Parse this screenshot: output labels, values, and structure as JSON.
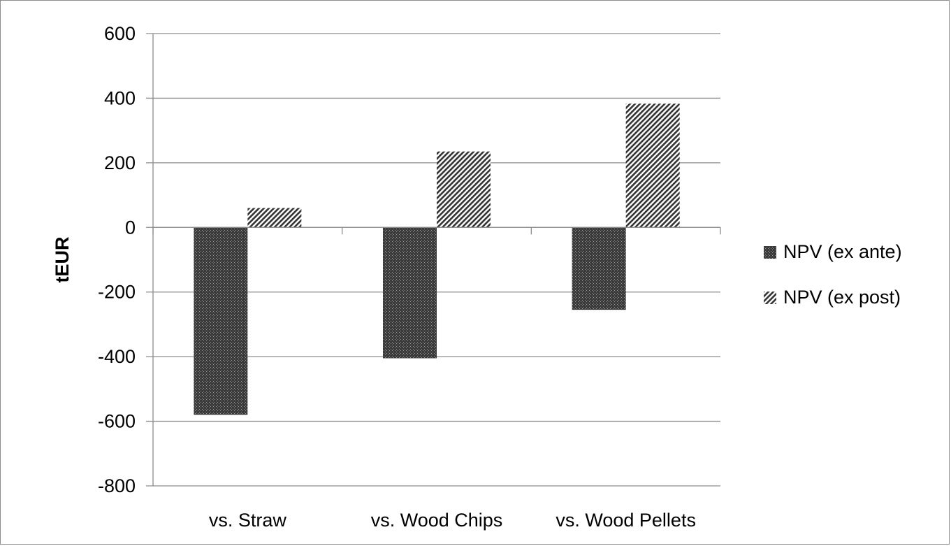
{
  "chart_data": {
    "type": "bar",
    "title": "",
    "xlabel": "",
    "ylabel": "tEUR",
    "ylim": [
      -800,
      600
    ],
    "yticks": [
      600,
      400,
      200,
      0,
      -200,
      -400,
      -600,
      -800
    ],
    "ytick_labels": [
      "600",
      "400",
      "200",
      "0",
      "-200",
      "-400",
      "-600",
      "-800"
    ],
    "grid": "horizontal",
    "legend_position": "right",
    "categories": [
      "vs. Straw",
      "vs. Wood Chips",
      "vs. Wood Pellets"
    ],
    "series": [
      {
        "name": "NPV (ex ante)",
        "values": [
          -580,
          -405,
          -255
        ],
        "pattern": "dense-dots",
        "color": "#1a1a1a"
      },
      {
        "name": "NPV (ex post)",
        "values": [
          60,
          235,
          383
        ],
        "pattern": "diagonal-hatch",
        "color": "#2a2a2a"
      }
    ]
  }
}
